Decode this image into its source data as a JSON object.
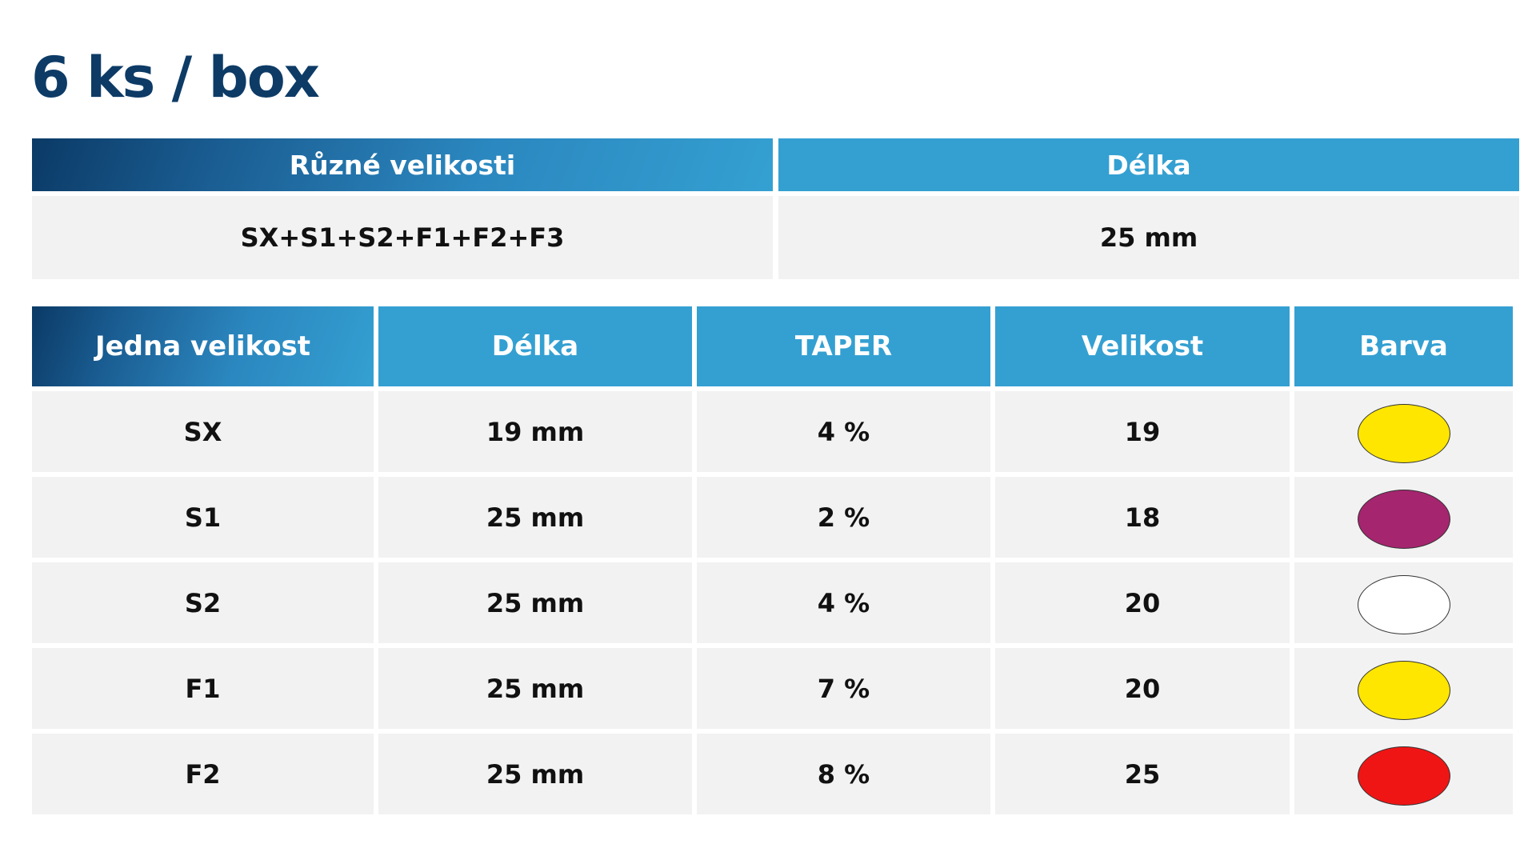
{
  "title": "6 ks / box",
  "mixed": {
    "header_sizes": "Různé velikosti",
    "header_length": "Délka",
    "sizes_value": "SX+S1+S2+F1+F2+F3",
    "length_value": "25 mm"
  },
  "single": {
    "headers": [
      "Jedna velikost",
      "Délka",
      "TAPER",
      "Velikost",
      "Barva"
    ],
    "rows": [
      {
        "name": "SX",
        "length": "19 mm",
        "taper": "4 %",
        "size": "19",
        "color": "#ffe600"
      },
      {
        "name": "S1",
        "length": "25 mm",
        "taper": "2 %",
        "size": "18",
        "color": "#a5256f"
      },
      {
        "name": "S2",
        "length": "25 mm",
        "taper": "4 %",
        "size": "20",
        "color": "#ffffff"
      },
      {
        "name": "F1",
        "length": "25 mm",
        "taper": "7 %",
        "size": "20",
        "color": "#ffe600"
      },
      {
        "name": "F2",
        "length": "25 mm",
        "taper": "8 %",
        "size": "25",
        "color": "#f01515"
      }
    ]
  },
  "colors": {
    "title": "#0d3b66",
    "header_light": "#34a0d2",
    "header_dark": "#0b3a66",
    "cell_bg": "#f2f2f2"
  }
}
